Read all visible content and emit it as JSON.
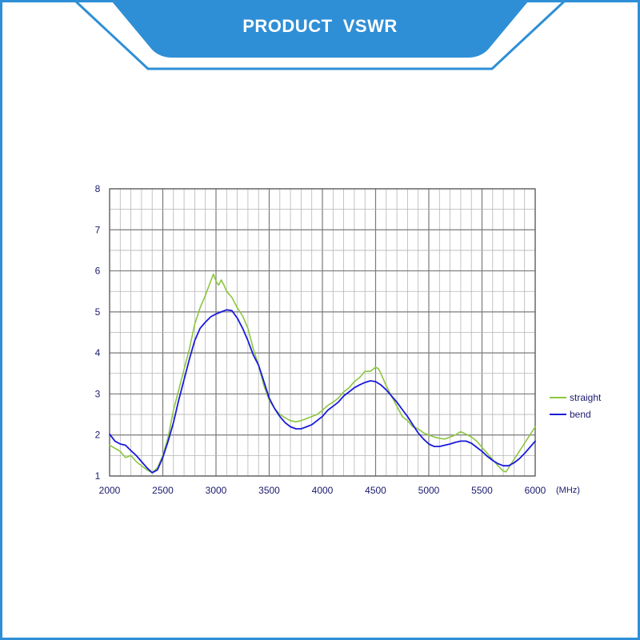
{
  "header": {
    "title": "PRODUCT  VSWR"
  },
  "colors": {
    "frame": "#2f8fd6",
    "banner": "#2f8fd6",
    "straight": "#8cc63f",
    "bend": "#1a1adc",
    "grid": "#9a9a9a",
    "text": "#1a1a6e"
  },
  "chart_data": {
    "type": "line",
    "xlim": [
      2000,
      6000
    ],
    "ylim": [
      1,
      8
    ],
    "x_ticks": [
      "2000",
      "2500",
      "3000",
      "3500",
      "4000",
      "4500",
      "5000",
      "5500",
      "6000"
    ],
    "y_ticks": [
      "1",
      "2",
      "3",
      "4",
      "5",
      "6",
      "7",
      "8"
    ],
    "x_unit": "(MHz)",
    "grid": true,
    "legend_position": "right",
    "series": [
      {
        "name": "straight",
        "color": "#8cc63f",
        "points": [
          [
            2000,
            1.75
          ],
          [
            2100,
            1.6
          ],
          [
            2150,
            1.45
          ],
          [
            2200,
            1.5
          ],
          [
            2250,
            1.35
          ],
          [
            2300,
            1.25
          ],
          [
            2350,
            1.15
          ],
          [
            2400,
            1.08
          ],
          [
            2450,
            1.2
          ],
          [
            2500,
            1.5
          ],
          [
            2550,
            1.95
          ],
          [
            2600,
            2.6
          ],
          [
            2650,
            3.1
          ],
          [
            2700,
            3.6
          ],
          [
            2750,
            4.1
          ],
          [
            2800,
            4.7
          ],
          [
            2850,
            5.1
          ],
          [
            2900,
            5.4
          ],
          [
            2950,
            5.75
          ],
          [
            2975,
            5.92
          ],
          [
            3000,
            5.75
          ],
          [
            3025,
            5.65
          ],
          [
            3050,
            5.78
          ],
          [
            3075,
            5.65
          ],
          [
            3100,
            5.5
          ],
          [
            3150,
            5.35
          ],
          [
            3200,
            5.1
          ],
          [
            3250,
            4.9
          ],
          [
            3300,
            4.6
          ],
          [
            3350,
            4.1
          ],
          [
            3400,
            3.7
          ],
          [
            3450,
            3.2
          ],
          [
            3500,
            2.85
          ],
          [
            3550,
            2.65
          ],
          [
            3600,
            2.5
          ],
          [
            3650,
            2.42
          ],
          [
            3700,
            2.35
          ],
          [
            3750,
            2.32
          ],
          [
            3800,
            2.35
          ],
          [
            3850,
            2.4
          ],
          [
            3900,
            2.45
          ],
          [
            3950,
            2.5
          ],
          [
            4000,
            2.6
          ],
          [
            4050,
            2.72
          ],
          [
            4100,
            2.8
          ],
          [
            4150,
            2.9
          ],
          [
            4200,
            3.05
          ],
          [
            4250,
            3.15
          ],
          [
            4300,
            3.3
          ],
          [
            4350,
            3.4
          ],
          [
            4400,
            3.55
          ],
          [
            4450,
            3.55
          ],
          [
            4500,
            3.65
          ],
          [
            4525,
            3.62
          ],
          [
            4550,
            3.5
          ],
          [
            4600,
            3.2
          ],
          [
            4650,
            2.95
          ],
          [
            4700,
            2.7
          ],
          [
            4750,
            2.45
          ],
          [
            4800,
            2.35
          ],
          [
            4850,
            2.2
          ],
          [
            4900,
            2.15
          ],
          [
            4950,
            2.05
          ],
          [
            5000,
            2.0
          ],
          [
            5050,
            1.95
          ],
          [
            5100,
            1.92
          ],
          [
            5150,
            1.9
          ],
          [
            5200,
            1.95
          ],
          [
            5250,
            2.0
          ],
          [
            5300,
            2.08
          ],
          [
            5350,
            2.02
          ],
          [
            5400,
            1.95
          ],
          [
            5450,
            1.85
          ],
          [
            5500,
            1.7
          ],
          [
            5550,
            1.55
          ],
          [
            5600,
            1.4
          ],
          [
            5650,
            1.25
          ],
          [
            5700,
            1.12
          ],
          [
            5725,
            1.1
          ],
          [
            5750,
            1.2
          ],
          [
            5800,
            1.4
          ],
          [
            5850,
            1.6
          ],
          [
            5900,
            1.8
          ],
          [
            5950,
            2.0
          ],
          [
            6000,
            2.2
          ]
        ]
      },
      {
        "name": "bend",
        "color": "#1a1adc",
        "points": [
          [
            2000,
            2.02
          ],
          [
            2050,
            1.85
          ],
          [
            2100,
            1.78
          ],
          [
            2150,
            1.75
          ],
          [
            2200,
            1.62
          ],
          [
            2250,
            1.5
          ],
          [
            2300,
            1.35
          ],
          [
            2350,
            1.2
          ],
          [
            2400,
            1.08
          ],
          [
            2450,
            1.15
          ],
          [
            2500,
            1.45
          ],
          [
            2550,
            1.85
          ],
          [
            2600,
            2.3
          ],
          [
            2650,
            2.85
          ],
          [
            2700,
            3.35
          ],
          [
            2750,
            3.85
          ],
          [
            2800,
            4.3
          ],
          [
            2850,
            4.6
          ],
          [
            2900,
            4.75
          ],
          [
            2950,
            4.88
          ],
          [
            3000,
            4.95
          ],
          [
            3050,
            5.0
          ],
          [
            3100,
            5.05
          ],
          [
            3150,
            5.03
          ],
          [
            3200,
            4.85
          ],
          [
            3250,
            4.6
          ],
          [
            3300,
            4.3
          ],
          [
            3350,
            3.95
          ],
          [
            3400,
            3.7
          ],
          [
            3450,
            3.3
          ],
          [
            3500,
            2.9
          ],
          [
            3550,
            2.65
          ],
          [
            3600,
            2.45
          ],
          [
            3650,
            2.3
          ],
          [
            3700,
            2.2
          ],
          [
            3750,
            2.15
          ],
          [
            3800,
            2.15
          ],
          [
            3850,
            2.2
          ],
          [
            3900,
            2.25
          ],
          [
            3950,
            2.35
          ],
          [
            4000,
            2.45
          ],
          [
            4050,
            2.6
          ],
          [
            4100,
            2.7
          ],
          [
            4150,
            2.8
          ],
          [
            4200,
            2.95
          ],
          [
            4250,
            3.05
          ],
          [
            4300,
            3.15
          ],
          [
            4350,
            3.22
          ],
          [
            4400,
            3.28
          ],
          [
            4450,
            3.32
          ],
          [
            4500,
            3.3
          ],
          [
            4550,
            3.22
          ],
          [
            4600,
            3.1
          ],
          [
            4650,
            2.95
          ],
          [
            4700,
            2.8
          ],
          [
            4750,
            2.62
          ],
          [
            4800,
            2.45
          ],
          [
            4850,
            2.25
          ],
          [
            4900,
            2.05
          ],
          [
            4950,
            1.9
          ],
          [
            5000,
            1.78
          ],
          [
            5050,
            1.72
          ],
          [
            5100,
            1.72
          ],
          [
            5150,
            1.75
          ],
          [
            5200,
            1.78
          ],
          [
            5250,
            1.82
          ],
          [
            5300,
            1.85
          ],
          [
            5350,
            1.85
          ],
          [
            5400,
            1.8
          ],
          [
            5450,
            1.7
          ],
          [
            5500,
            1.6
          ],
          [
            5550,
            1.48
          ],
          [
            5600,
            1.38
          ],
          [
            5650,
            1.3
          ],
          [
            5700,
            1.25
          ],
          [
            5750,
            1.25
          ],
          [
            5800,
            1.32
          ],
          [
            5850,
            1.42
          ],
          [
            5900,
            1.55
          ],
          [
            5950,
            1.7
          ],
          [
            6000,
            1.85
          ]
        ]
      }
    ]
  }
}
